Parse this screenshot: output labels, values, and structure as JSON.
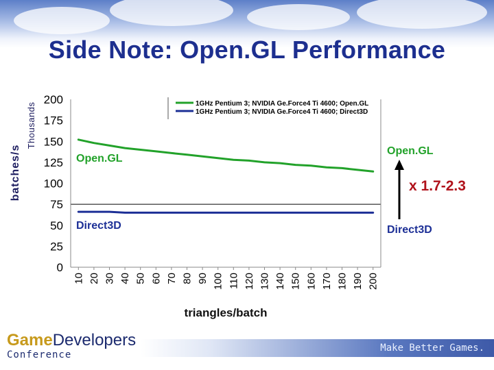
{
  "slide": {
    "title": "Side Note: Open.GL Performance",
    "logo": {
      "part1": "Game",
      "part2": "Developers",
      "line2": "Conference"
    },
    "tagline": "Make Better Games."
  },
  "colors": {
    "title": "#1d2f8f",
    "opengl": "#22a22a",
    "direct3d": "#1c2f96",
    "multiplier": "#b0121b"
  },
  "annotations": {
    "opengl_in": "Open.GL",
    "direct3d_in": "Direct3D",
    "opengl_out": "Open.GL",
    "direct3d_out": "Direct3D",
    "multiplier": "x 1.7-2.3"
  },
  "chart_data": {
    "type": "line",
    "ylabel": "batches/s",
    "yunit": "Thousands",
    "xlabel": "triangles/batch",
    "ylim": [
      0,
      200
    ],
    "yticks": [
      0,
      25,
      50,
      75,
      100,
      125,
      150,
      175,
      200
    ],
    "x": [
      10,
      20,
      30,
      40,
      50,
      60,
      70,
      80,
      90,
      100,
      110,
      120,
      130,
      140,
      150,
      160,
      170,
      180,
      190,
      200
    ],
    "grid": "horizontal at 75",
    "legend_position": "top",
    "series": [
      {
        "name": "1GHz Pentium 3; NVIDIA Ge.Force4 Ti 4600; Open.GL",
        "color": "#22a22a",
        "values": [
          152,
          148,
          145,
          142,
          140,
          138,
          136,
          134,
          132,
          130,
          128,
          127,
          125,
          124,
          122,
          121,
          119,
          118,
          116,
          114
        ]
      },
      {
        "name": "1GHz Pentium 3; NVIDIA Ge.Force4 Ti 4600; Direct3D",
        "color": "#1c2f96",
        "values": [
          66,
          66,
          66,
          65,
          65,
          65,
          65,
          65,
          65,
          65,
          65,
          65,
          65,
          65,
          65,
          65,
          65,
          65,
          65,
          65
        ]
      }
    ]
  }
}
